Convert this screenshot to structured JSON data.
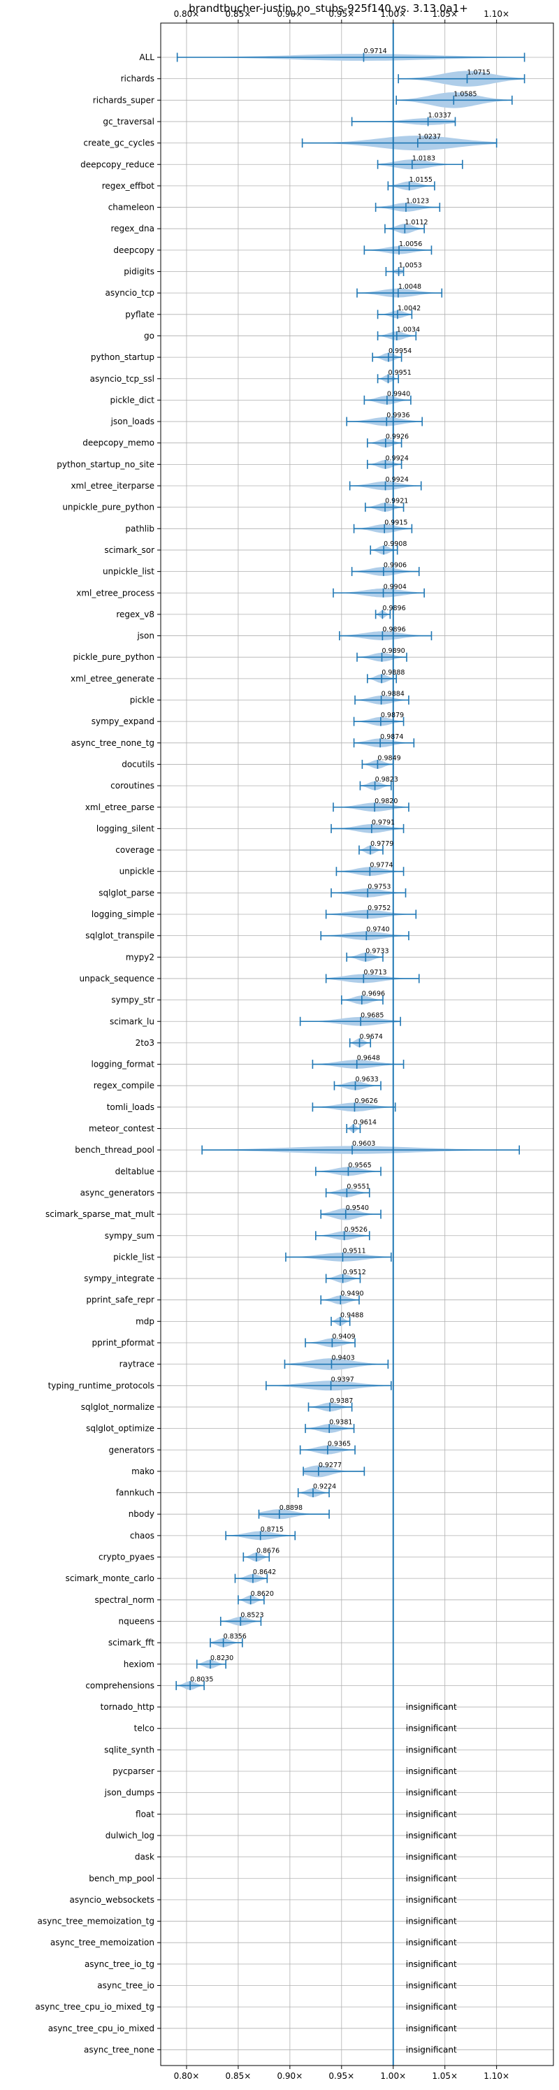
{
  "colors": {
    "violin": "#aecde9",
    "whisker": "#1f77b4",
    "reference_line": "#1f77b4",
    "grid": "#b0b0b0",
    "axis": "#000000"
  },
  "chart_data": {
    "type": "violin",
    "orientation": "horizontal",
    "title": "brandtbucher-justin_no_stubs-925f140 vs. 3.13.0a1+",
    "xlabel": "",
    "ylabel": "",
    "xlim": [
      0.775,
      1.155
    ],
    "x_ticks": [
      0.8,
      0.85,
      0.9,
      0.95,
      1.0,
      1.05,
      1.1
    ],
    "x_tick_labels": [
      "0.80×",
      "0.85×",
      "0.90×",
      "0.95×",
      "1.00×",
      "1.05×",
      "1.10×"
    ],
    "x_ticks_top_and_bottom": true,
    "grid": true,
    "reference_value": 1.0,
    "insignificant_text": "insignificant",
    "benchmarks": [
      {
        "name": "ALL",
        "median": 0.9714,
        "min": 0.791,
        "max": 1.127,
        "width": 0.35,
        "significant": true
      },
      {
        "name": "richards",
        "median": 1.0715,
        "min": 1.005,
        "max": 1.127,
        "width": 0.8,
        "significant": true
      },
      {
        "name": "richards_super",
        "median": 1.0585,
        "min": 1.003,
        "max": 1.115,
        "width": 0.8,
        "significant": true
      },
      {
        "name": "gc_traversal",
        "median": 1.0337,
        "min": 0.96,
        "max": 1.06,
        "width": 0.35,
        "significant": true
      },
      {
        "name": "create_gc_cycles",
        "median": 1.0237,
        "min": 0.912,
        "max": 1.1,
        "width": 0.75,
        "significant": true
      },
      {
        "name": "deepcopy_reduce",
        "median": 1.0183,
        "min": 0.985,
        "max": 1.067,
        "width": 0.5,
        "significant": true
      },
      {
        "name": "regex_effbot",
        "median": 1.0155,
        "min": 0.995,
        "max": 1.04,
        "width": 0.45,
        "significant": true
      },
      {
        "name": "chameleon",
        "median": 1.0123,
        "min": 0.983,
        "max": 1.045,
        "width": 0.45,
        "significant": true
      },
      {
        "name": "regex_dna",
        "median": 1.0112,
        "min": 0.992,
        "max": 1.03,
        "width": 0.5,
        "significant": true
      },
      {
        "name": "deepcopy",
        "median": 1.0056,
        "min": 0.972,
        "max": 1.037,
        "width": 0.4,
        "significant": true
      },
      {
        "name": "pidigits",
        "median": 1.0053,
        "min": 0.993,
        "max": 1.01,
        "width": 0.3,
        "significant": true
      },
      {
        "name": "asyncio_tcp",
        "median": 1.0048,
        "min": 0.965,
        "max": 1.047,
        "width": 0.45,
        "significant": true
      },
      {
        "name": "pyflate",
        "median": 1.0042,
        "min": 0.985,
        "max": 1.018,
        "width": 0.4,
        "significant": true
      },
      {
        "name": "go",
        "median": 1.0034,
        "min": 0.985,
        "max": 1.022,
        "width": 0.45,
        "significant": true
      },
      {
        "name": "python_startup",
        "median": 0.9954,
        "min": 0.98,
        "max": 1.008,
        "width": 0.45,
        "significant": true
      },
      {
        "name": "asyncio_tcp_ssl",
        "median": 0.9951,
        "min": 0.985,
        "max": 1.005,
        "width": 0.4,
        "significant": true
      },
      {
        "name": "pickle_dict",
        "median": 0.994,
        "min": 0.972,
        "max": 1.017,
        "width": 0.45,
        "significant": true
      },
      {
        "name": "json_loads",
        "median": 0.9936,
        "min": 0.955,
        "max": 1.028,
        "width": 0.45,
        "significant": true
      },
      {
        "name": "deepcopy_memo",
        "median": 0.9926,
        "min": 0.975,
        "max": 1.008,
        "width": 0.45,
        "significant": true
      },
      {
        "name": "python_startup_no_site",
        "median": 0.9924,
        "min": 0.975,
        "max": 1.008,
        "width": 0.45,
        "significant": true
      },
      {
        "name": "xml_etree_iterparse",
        "median": 0.9924,
        "min": 0.958,
        "max": 1.027,
        "width": 0.45,
        "significant": true
      },
      {
        "name": "unpickle_pure_python",
        "median": 0.9921,
        "min": 0.973,
        "max": 1.01,
        "width": 0.45,
        "significant": true
      },
      {
        "name": "pathlib",
        "median": 0.9915,
        "min": 0.962,
        "max": 1.018,
        "width": 0.45,
        "significant": true
      },
      {
        "name": "scimark_sor",
        "median": 0.9908,
        "min": 0.978,
        "max": 1.004,
        "width": 0.45,
        "significant": true
      },
      {
        "name": "unpickle_list",
        "median": 0.9906,
        "min": 0.96,
        "max": 1.025,
        "width": 0.45,
        "significant": true
      },
      {
        "name": "xml_etree_process",
        "median": 0.9904,
        "min": 0.942,
        "max": 1.03,
        "width": 0.45,
        "significant": true
      },
      {
        "name": "regex_v8",
        "median": 0.9896,
        "min": 0.983,
        "max": 0.997,
        "width": 0.4,
        "significant": true
      },
      {
        "name": "json",
        "median": 0.9896,
        "min": 0.948,
        "max": 1.037,
        "width": 0.45,
        "significant": true
      },
      {
        "name": "pickle_pure_python",
        "median": 0.989,
        "min": 0.965,
        "max": 1.013,
        "width": 0.45,
        "significant": true
      },
      {
        "name": "xml_etree_generate",
        "median": 0.9888,
        "min": 0.975,
        "max": 1.003,
        "width": 0.45,
        "significant": true
      },
      {
        "name": "pickle",
        "median": 0.9884,
        "min": 0.963,
        "max": 1.015,
        "width": 0.45,
        "significant": true
      },
      {
        "name": "sympy_expand",
        "median": 0.9879,
        "min": 0.962,
        "max": 1.01,
        "width": 0.45,
        "significant": true
      },
      {
        "name": "async_tree_none_tg",
        "median": 0.9874,
        "min": 0.962,
        "max": 1.02,
        "width": 0.45,
        "significant": true
      },
      {
        "name": "docutils",
        "median": 0.9849,
        "min": 0.97,
        "max": 1.0,
        "width": 0.45,
        "significant": true
      },
      {
        "name": "coroutines",
        "median": 0.9823,
        "min": 0.968,
        "max": 0.998,
        "width": 0.45,
        "significant": true
      },
      {
        "name": "xml_etree_parse",
        "median": 0.982,
        "min": 0.942,
        "max": 1.015,
        "width": 0.45,
        "significant": true
      },
      {
        "name": "logging_silent",
        "median": 0.9791,
        "min": 0.94,
        "max": 1.01,
        "width": 0.45,
        "significant": true
      },
      {
        "name": "coverage",
        "median": 0.9779,
        "min": 0.967,
        "max": 0.99,
        "width": 0.45,
        "significant": true
      },
      {
        "name": "unpickle",
        "median": 0.9774,
        "min": 0.945,
        "max": 1.01,
        "width": 0.45,
        "significant": true
      },
      {
        "name": "sqlglot_parse",
        "median": 0.9753,
        "min": 0.94,
        "max": 1.012,
        "width": 0.45,
        "significant": true
      },
      {
        "name": "logging_simple",
        "median": 0.9752,
        "min": 0.935,
        "max": 1.022,
        "width": 0.45,
        "significant": true
      },
      {
        "name": "sqlglot_transpile",
        "median": 0.974,
        "min": 0.93,
        "max": 1.015,
        "width": 0.45,
        "significant": true
      },
      {
        "name": "mypy2",
        "median": 0.9733,
        "min": 0.955,
        "max": 0.99,
        "width": 0.45,
        "significant": true
      },
      {
        "name": "unpack_sequence",
        "median": 0.9713,
        "min": 0.935,
        "max": 1.025,
        "width": 0.45,
        "significant": true
      },
      {
        "name": "sympy_str",
        "median": 0.9696,
        "min": 0.95,
        "max": 0.99,
        "width": 0.45,
        "significant": true
      },
      {
        "name": "scimark_lu",
        "median": 0.9685,
        "min": 0.91,
        "max": 1.007,
        "width": 0.45,
        "significant": true
      },
      {
        "name": "2to3",
        "median": 0.9674,
        "min": 0.958,
        "max": 0.978,
        "width": 0.45,
        "significant": true
      },
      {
        "name": "logging_format",
        "median": 0.9648,
        "min": 0.922,
        "max": 1.01,
        "width": 0.45,
        "significant": true
      },
      {
        "name": "regex_compile",
        "median": 0.9633,
        "min": 0.943,
        "max": 0.988,
        "width": 0.45,
        "significant": true
      },
      {
        "name": "tomli_loads",
        "median": 0.9626,
        "min": 0.922,
        "max": 1.002,
        "width": 0.45,
        "significant": true
      },
      {
        "name": "meteor_contest",
        "median": 0.9614,
        "min": 0.955,
        "max": 0.968,
        "width": 0.4,
        "significant": true
      },
      {
        "name": "bench_thread_pool",
        "median": 0.9603,
        "min": 0.815,
        "max": 1.122,
        "width": 0.4,
        "significant": true
      },
      {
        "name": "deltablue",
        "median": 0.9565,
        "min": 0.925,
        "max": 0.988,
        "width": 0.45,
        "significant": true
      },
      {
        "name": "async_generators",
        "median": 0.9551,
        "min": 0.935,
        "max": 0.977,
        "width": 0.45,
        "significant": true
      },
      {
        "name": "scimark_sparse_mat_mult",
        "median": 0.954,
        "min": 0.93,
        "max": 0.988,
        "width": 0.6,
        "significant": true
      },
      {
        "name": "sympy_sum",
        "median": 0.9526,
        "min": 0.925,
        "max": 0.977,
        "width": 0.45,
        "significant": true
      },
      {
        "name": "pickle_list",
        "median": 0.9511,
        "min": 0.896,
        "max": 0.998,
        "width": 0.45,
        "significant": true
      },
      {
        "name": "sympy_integrate",
        "median": 0.9512,
        "min": 0.935,
        "max": 0.968,
        "width": 0.45,
        "significant": true
      },
      {
        "name": "pprint_safe_repr",
        "median": 0.949,
        "min": 0.93,
        "max": 0.967,
        "width": 0.45,
        "significant": true
      },
      {
        "name": "mdp",
        "median": 0.9488,
        "min": 0.94,
        "max": 0.958,
        "width": 0.45,
        "significant": true
      },
      {
        "name": "pprint_pformat",
        "median": 0.9409,
        "min": 0.915,
        "max": 0.963,
        "width": 0.45,
        "significant": true
      },
      {
        "name": "raytrace",
        "median": 0.9403,
        "min": 0.895,
        "max": 0.995,
        "width": 0.6,
        "significant": true
      },
      {
        "name": "typing_runtime_protocols",
        "median": 0.9397,
        "min": 0.877,
        "max": 0.998,
        "width": 0.5,
        "significant": true
      },
      {
        "name": "sqlglot_normalize",
        "median": 0.9387,
        "min": 0.918,
        "max": 0.96,
        "width": 0.45,
        "significant": true
      },
      {
        "name": "sqlglot_optimize",
        "median": 0.9381,
        "min": 0.915,
        "max": 0.962,
        "width": 0.45,
        "significant": true
      },
      {
        "name": "generators",
        "median": 0.9365,
        "min": 0.91,
        "max": 0.963,
        "width": 0.45,
        "significant": true
      },
      {
        "name": "mako",
        "median": 0.9277,
        "min": 0.913,
        "max": 0.972,
        "width": 0.6,
        "significant": true
      },
      {
        "name": "fannkuch",
        "median": 0.9224,
        "min": 0.908,
        "max": 0.938,
        "width": 0.45,
        "significant": true
      },
      {
        "name": "nbody",
        "median": 0.8898,
        "min": 0.87,
        "max": 0.938,
        "width": 0.5,
        "significant": true
      },
      {
        "name": "chaos",
        "median": 0.8715,
        "min": 0.838,
        "max": 0.905,
        "width": 0.45,
        "significant": true
      },
      {
        "name": "crypto_pyaes",
        "median": 0.8676,
        "min": 0.855,
        "max": 0.88,
        "width": 0.45,
        "significant": true
      },
      {
        "name": "scimark_monte_carlo",
        "median": 0.8642,
        "min": 0.847,
        "max": 0.878,
        "width": 0.45,
        "significant": true
      },
      {
        "name": "spectral_norm",
        "median": 0.862,
        "min": 0.85,
        "max": 0.875,
        "width": 0.45,
        "significant": true
      },
      {
        "name": "nqueens",
        "median": 0.8523,
        "min": 0.833,
        "max": 0.872,
        "width": 0.45,
        "significant": true
      },
      {
        "name": "scimark_fft",
        "median": 0.8356,
        "min": 0.823,
        "max": 0.854,
        "width": 0.45,
        "significant": true
      },
      {
        "name": "hexiom",
        "median": 0.823,
        "min": 0.81,
        "max": 0.838,
        "width": 0.45,
        "significant": true
      },
      {
        "name": "comprehensions",
        "median": 0.8035,
        "min": 0.79,
        "max": 0.817,
        "width": 0.45,
        "significant": true
      },
      {
        "name": "tornado_http",
        "significant": false
      },
      {
        "name": "telco",
        "significant": false
      },
      {
        "name": "sqlite_synth",
        "significant": false
      },
      {
        "name": "pycparser",
        "significant": false
      },
      {
        "name": "json_dumps",
        "significant": false
      },
      {
        "name": "float",
        "significant": false
      },
      {
        "name": "dulwich_log",
        "significant": false
      },
      {
        "name": "dask",
        "significant": false
      },
      {
        "name": "bench_mp_pool",
        "significant": false
      },
      {
        "name": "asyncio_websockets",
        "significant": false
      },
      {
        "name": "async_tree_memoization_tg",
        "significant": false
      },
      {
        "name": "async_tree_memoization",
        "significant": false
      },
      {
        "name": "async_tree_io_tg",
        "significant": false
      },
      {
        "name": "async_tree_io",
        "significant": false
      },
      {
        "name": "async_tree_cpu_io_mixed_tg",
        "significant": false
      },
      {
        "name": "async_tree_cpu_io_mixed",
        "significant": false
      },
      {
        "name": "async_tree_none",
        "significant": false
      }
    ]
  }
}
